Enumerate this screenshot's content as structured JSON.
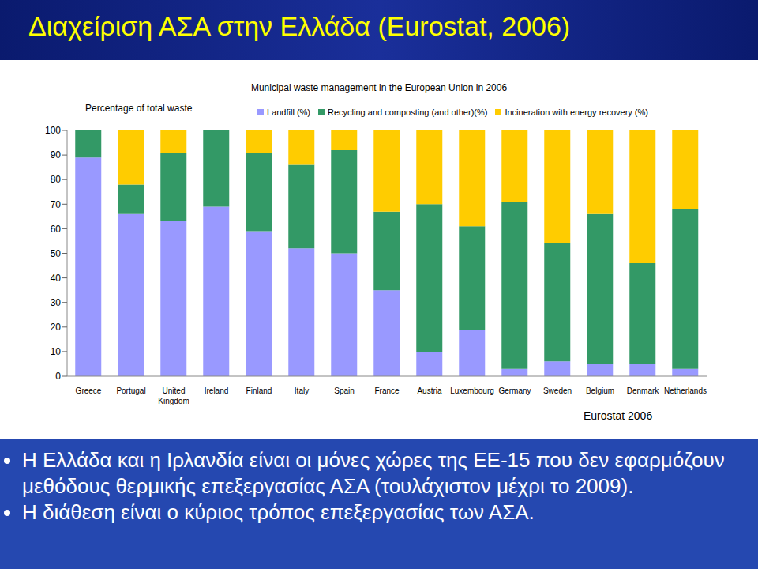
{
  "slide": {
    "title": "Διαχείριση ΑΣΑ στην Ελλάδα (Eurostat, 2006)",
    "bullets": [
      "Η Ελλάδα και η Ιρλανδία είναι οι μόνες χώρες της ΕΕ-15 που δεν εφαρμόζουν μεθόδους θερμικής επεξεργασίας ΑΣΑ (τουλάχιστον μέχρι το 2009).",
      "Η διάθεση είναι ο κύριος τρόπος επεξεργασίας των ΑΣΑ."
    ]
  },
  "chart_data": {
    "type": "bar",
    "title": "Municipal waste management in the European Union in 2006",
    "y_label": "Percentage of total waste",
    "annotation": "Eurostat 2006",
    "stacked": true,
    "grid": false,
    "legend": "top",
    "categories": [
      "Greece",
      "Portugal",
      "United Kingdom",
      "Ireland",
      "Finland",
      "Italy",
      "Spain",
      "France",
      "Austria",
      "Luxembourg",
      "Germany",
      "Sweden",
      "Belgium",
      "Denmark",
      "Netherlands"
    ],
    "series": [
      {
        "name": "Landfill (%)",
        "color": "#9999ff",
        "values": [
          89,
          66,
          63,
          69,
          59,
          52,
          50,
          35,
          10,
          19,
          3,
          6,
          5,
          5,
          3
        ]
      },
      {
        "name": "Recycling and composting (and other)(%)",
        "color": "#339966",
        "values": [
          11,
          12,
          28,
          31,
          32,
          34,
          42,
          32,
          60,
          42,
          68,
          48,
          61,
          41,
          65
        ]
      },
      {
        "name": "Incineration with energy recovery (%)",
        "color": "#ffcc00",
        "values": [
          0,
          22,
          9,
          0,
          9,
          14,
          8,
          33,
          30,
          39,
          29,
          46,
          34,
          54,
          32
        ]
      }
    ],
    "ylim": [
      0,
      100
    ],
    "yticks": [
      0,
      10,
      20,
      30,
      40,
      50,
      60,
      70,
      80,
      90,
      100
    ]
  }
}
